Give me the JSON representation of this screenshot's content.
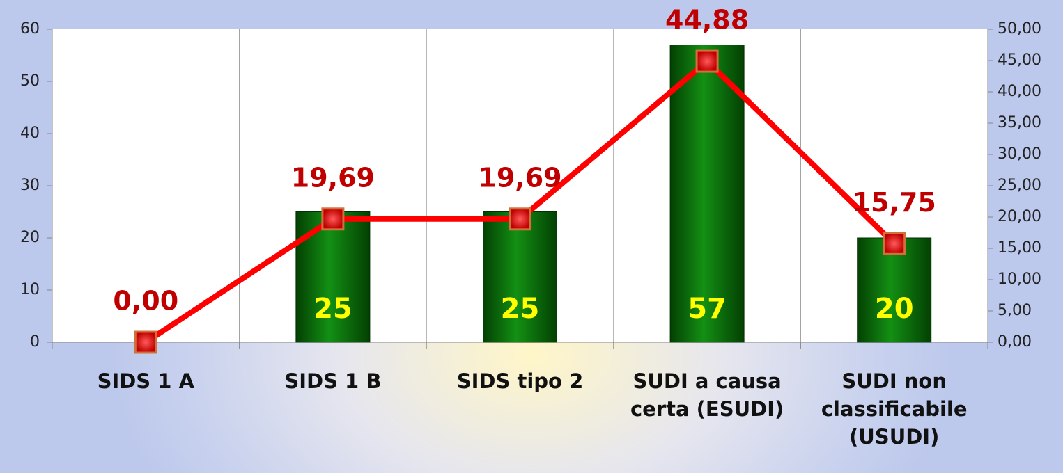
{
  "chart_data": {
    "type": "bar",
    "categories": [
      "SIDS 1 A",
      "SIDS 1 B",
      "SIDS tipo 2",
      "SUDI a causa certa (ESUDI)",
      "SUDI non classificabile (USUDI)"
    ],
    "series": [
      {
        "type": "bar",
        "color": "#0b6e0b",
        "values": [
          0,
          25,
          25,
          57,
          20
        ]
      },
      {
        "type": "line",
        "axis": "y2",
        "color": "#ff0000",
        "values": [
          0,
          19.69,
          19.69,
          44.88,
          15.75
        ],
        "value_labels": [
          "0,00",
          "19,69",
          "19,69",
          "44,88",
          "15,75"
        ]
      }
    ],
    "ylim": [
      0,
      60
    ],
    "yticks": [
      0,
      10,
      20,
      30,
      40,
      50,
      60
    ],
    "y2lim": [
      0,
      50
    ],
    "y2ticks": [
      {
        "value": 0,
        "label": "0,00"
      },
      {
        "value": 5,
        "label": "5,00"
      },
      {
        "value": 10,
        "label": "10,00"
      },
      {
        "value": 15,
        "label": "15,00"
      },
      {
        "value": 20,
        "label": "20,00"
      },
      {
        "value": 25,
        "label": "25,00"
      },
      {
        "value": 30,
        "label": "30,00"
      },
      {
        "value": 35,
        "label": "35,00"
      },
      {
        "value": 40,
        "label": "40,00"
      },
      {
        "value": 45,
        "label": "45,00"
      },
      {
        "value": 50,
        "label": "50,00"
      }
    ],
    "grid": true
  }
}
